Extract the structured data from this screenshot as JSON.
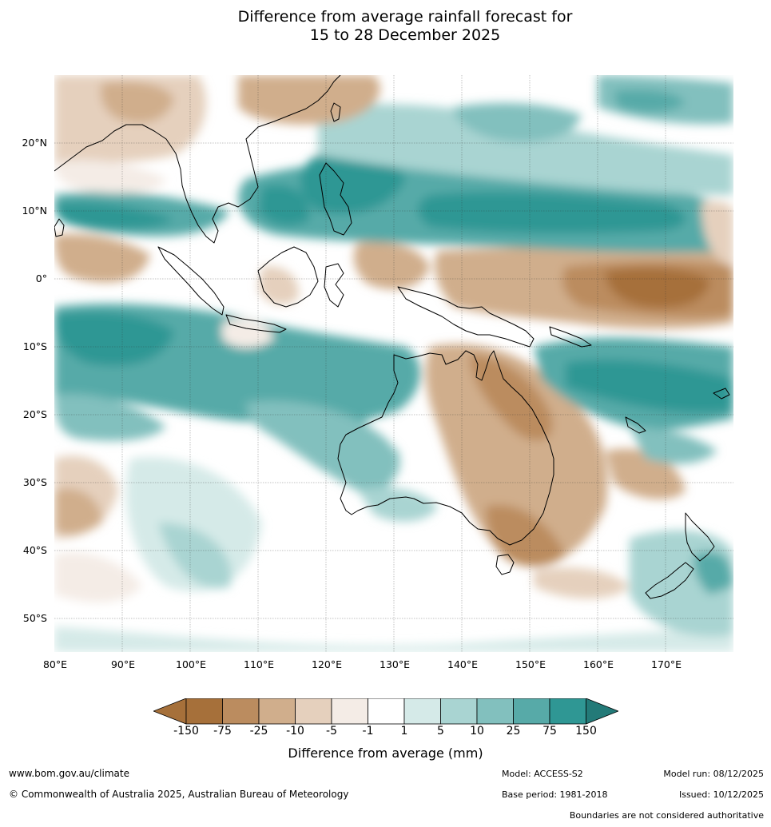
{
  "title": {
    "line1": "Difference from average rainfall forecast for",
    "line2": "15 to 28 December 2025"
  },
  "map": {
    "lat_labels": [
      "20°N",
      "10°N",
      "0°",
      "10°S",
      "20°S",
      "30°S",
      "40°S",
      "50°S"
    ],
    "lon_labels": [
      "80°E",
      "90°E",
      "100°E",
      "110°E",
      "120°E",
      "130°E",
      "140°E",
      "150°E",
      "160°E",
      "170°E"
    ],
    "lat_values": [
      20,
      10,
      0,
      -10,
      -20,
      -30,
      -40,
      -50
    ],
    "lon_values": [
      80,
      90,
      100,
      110,
      120,
      130,
      140,
      150,
      160,
      170
    ],
    "lat_range": [
      -55,
      30
    ],
    "lon_range": [
      80,
      180
    ]
  },
  "legend": {
    "label": "Difference from average (mm)",
    "ticks": [
      "-150",
      "-75",
      "-25",
      "-10",
      "-5",
      "-1",
      "1",
      "5",
      "10",
      "25",
      "75",
      "150"
    ],
    "colors": [
      "#a6703a",
      "#bb8c5f",
      "#d0ae8c",
      "#e5d0bd",
      "#f4ece6",
      "#ffffff",
      "#d5eae8",
      "#a9d4d2",
      "#82c0be",
      "#57aaa8",
      "#2f9794",
      "#237a78"
    ]
  },
  "footer": {
    "website": "www.bom.gov.au/climate",
    "copyright": "© Commonwealth of Australia 2025, Australian Bureau of Meteorology",
    "model": "Model: ACCESS-S2",
    "base_period": "Base period: 1981-2018",
    "model_run": "Model run: 08/12/2025",
    "issued": "Issued: 10/12/2025",
    "disclaimer": "Boundaries are not considered authoritative"
  }
}
